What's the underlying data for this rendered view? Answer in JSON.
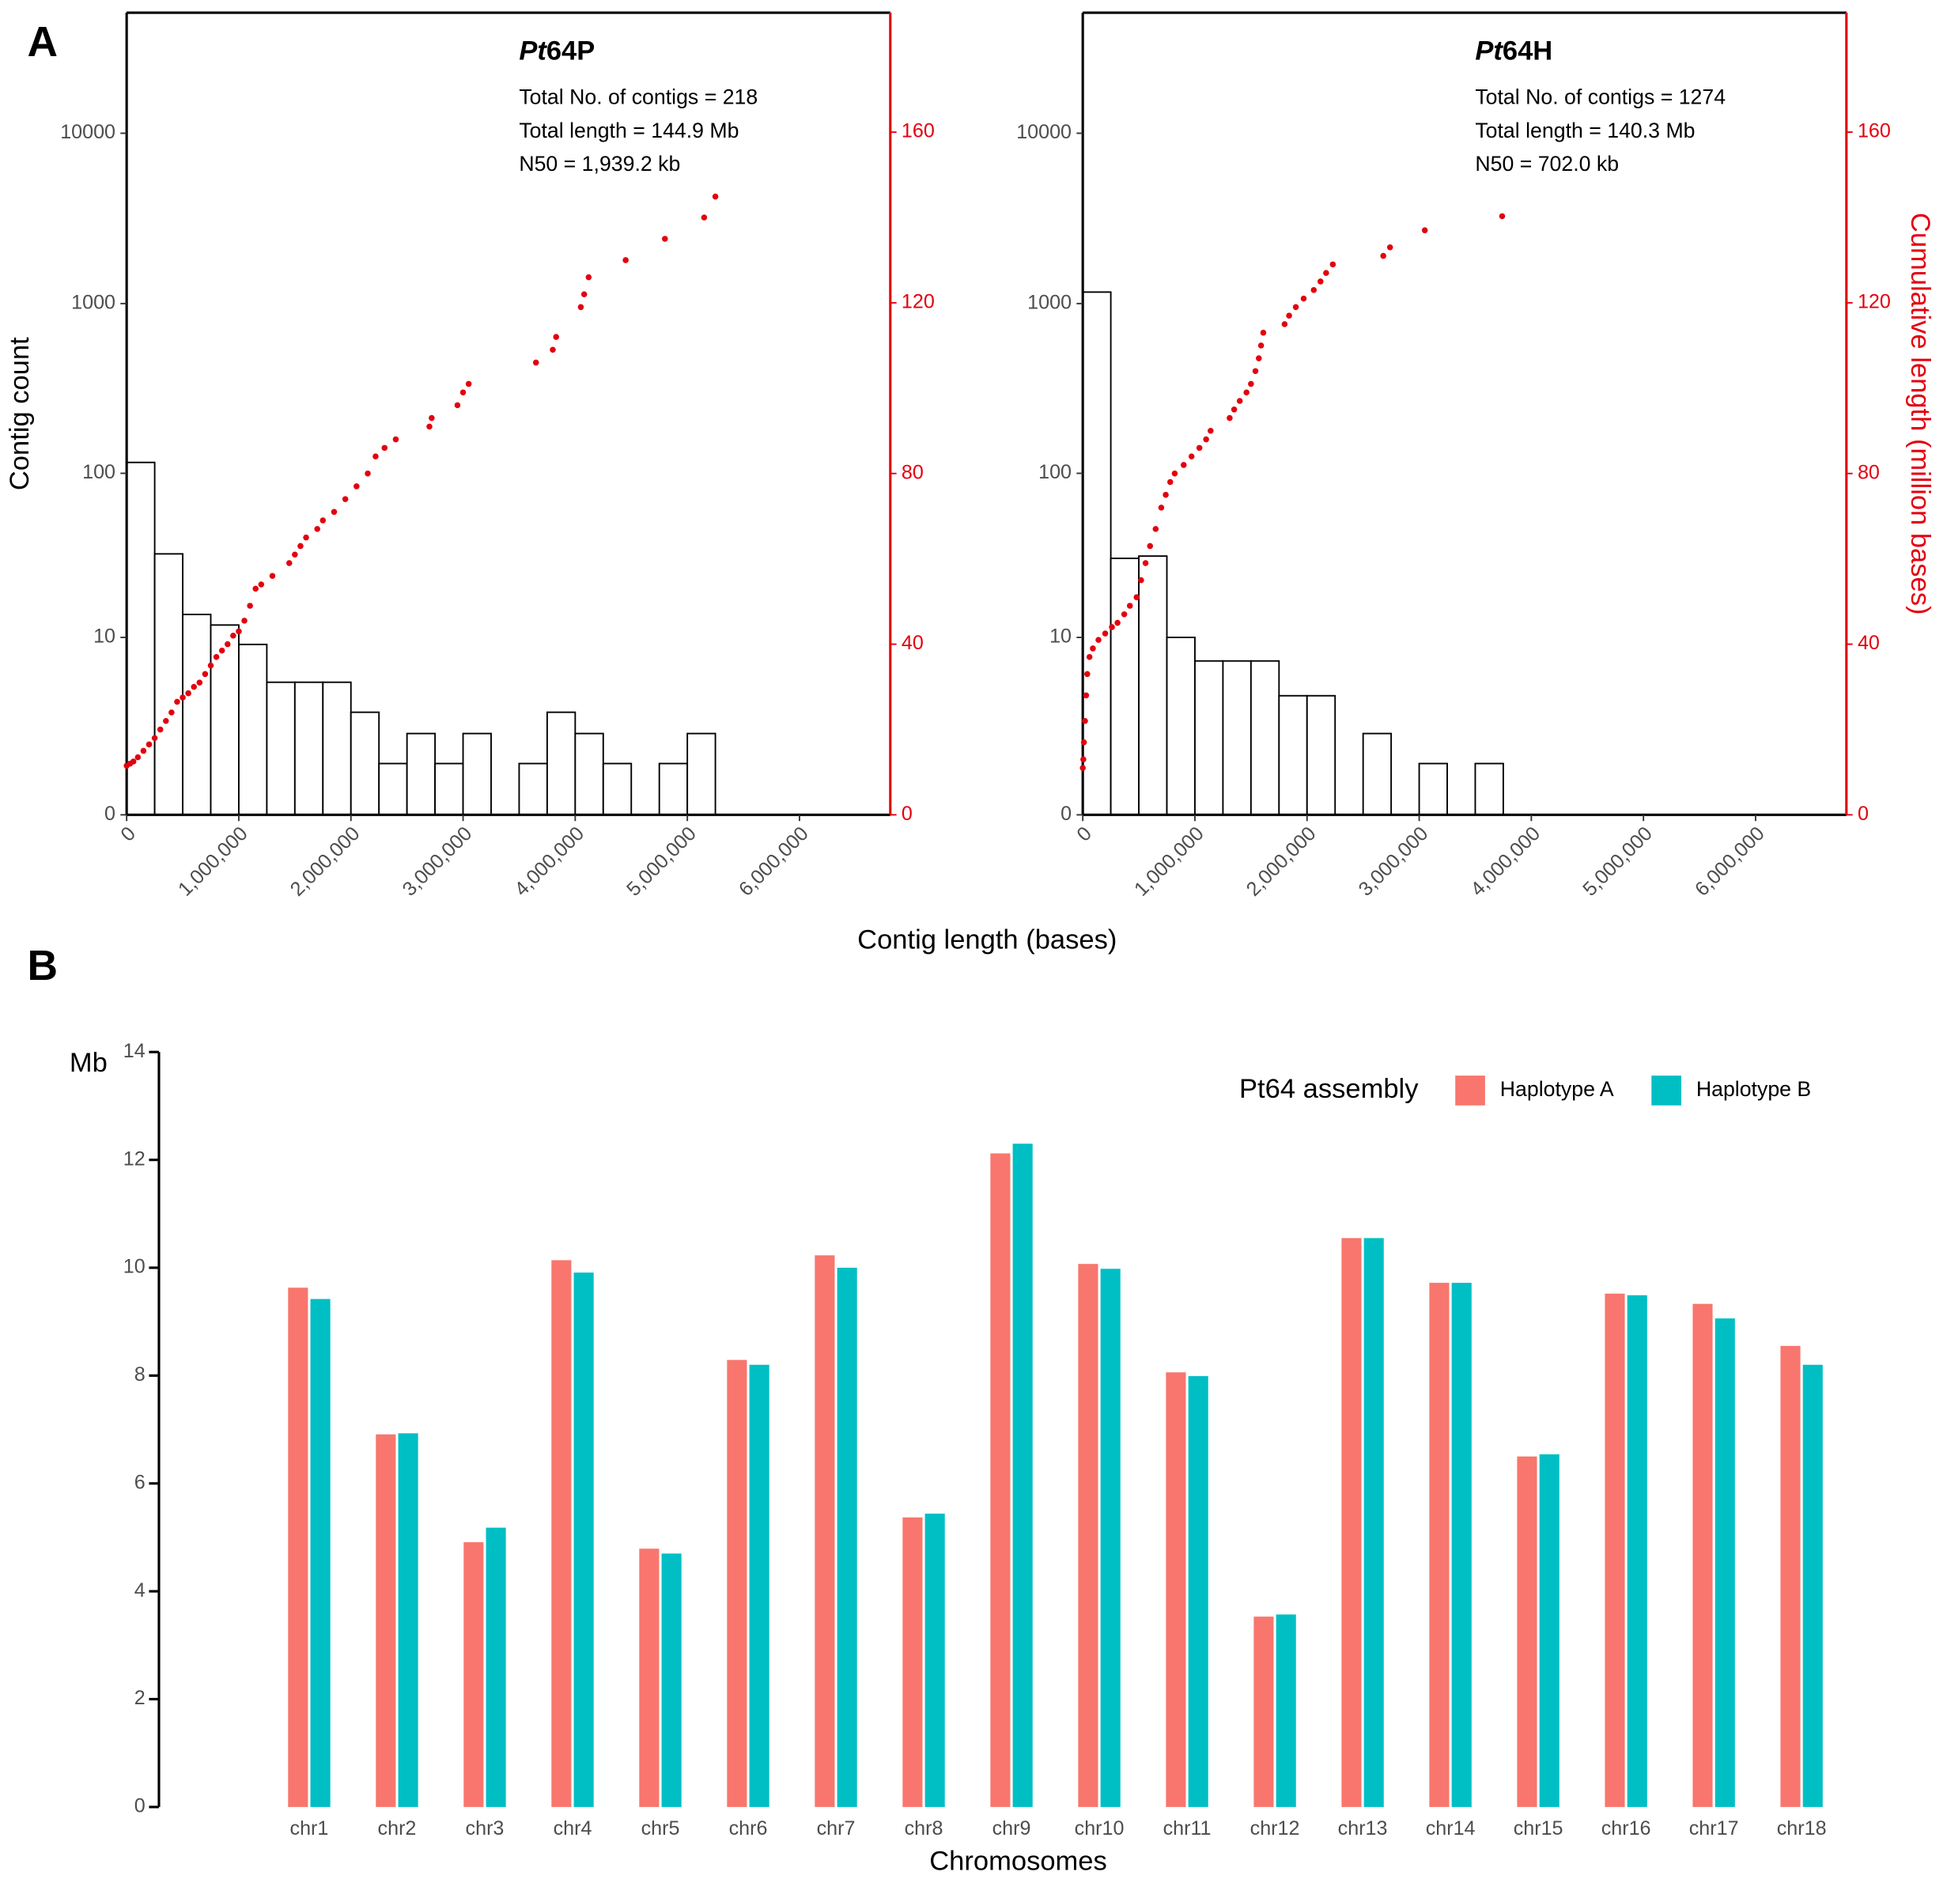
{
  "panel_a": {
    "label": "A",
    "xlabel": "Contig length (bases)"
  },
  "panel_b": {
    "label": "B"
  },
  "chart_data": [
    {
      "type": "histogram",
      "title": [
        {
          "text": "Pt",
          "italic": true
        },
        {
          "text": "64P",
          "italic": false
        }
      ],
      "annotations": [
        "Total No. of contigs = 218",
        "Total length = 144.9 Mb",
        "N50 = 1,939.2 kb"
      ],
      "ylabel": "Contig count",
      "bins": [
        0,
        250000,
        500000,
        750000,
        1000000,
        1250000,
        1500000,
        1750000,
        2000000,
        2250000,
        2500000,
        2750000,
        3000000,
        3250000,
        3500000,
        3750000,
        4000000,
        4250000,
        4500000,
        4750000,
        5000000,
        5250000
      ],
      "values": [
        116,
        33,
        14,
        12,
        9,
        5,
        5,
        5,
        3,
        1,
        2,
        1,
        2,
        0,
        1,
        3,
        2,
        1,
        0,
        1,
        2
      ],
      "color": "#ffffff",
      "edgecolor": "#000000",
      "xlim": [
        0,
        6810000
      ],
      "xticks": [
        0,
        {
          "value": 1000000,
          "label": "1,000,000"
        },
        {
          "value": 2000000,
          "label": "2,000,000"
        },
        {
          "value": 3000000,
          "label": "3,000,000"
        },
        {
          "value": 4000000,
          "label": "4,000,000"
        },
        {
          "value": 5000000,
          "label": "5,000,000"
        },
        {
          "value": 6000000,
          "label": "6,000,000"
        }
      ],
      "yscale": "log1p",
      "ylim": [
        0,
        51000
      ],
      "yticks": [
        0,
        10,
        100,
        1000,
        10000
      ],
      "y2lim": [
        0,
        188
      ],
      "y2ticks": [
        0,
        40,
        80,
        120,
        160
      ],
      "y2color": "#e3000f",
      "cumulative": {
        "axis": "y2",
        "color": "#e3000f",
        "x": [
          0,
          30000,
          60000,
          100000,
          150000,
          200000,
          250000,
          300000,
          350000,
          400000,
          450000,
          500000,
          550000,
          600000,
          650000,
          700000,
          750000,
          800000,
          850000,
          900000,
          950000,
          1000000,
          1050000,
          1100000,
          1150000,
          1200000,
          1300000,
          1450000,
          1500000,
          1550000,
          1600000,
          1700000,
          1750000,
          1850000,
          1950000,
          2050000,
          2150000,
          2220000,
          2300000,
          2400000,
          2700000,
          2720000,
          2950000,
          3000000,
          3050000,
          3650000,
          3800000,
          3830000,
          4050000,
          4080000,
          4120000,
          4450000,
          4800000,
          5150000,
          5250000
        ],
        "y": [
          11.5,
          12,
          12.5,
          13.5,
          15,
          16.5,
          18,
          20,
          22,
          24,
          26.5,
          27.5,
          28.5,
          30,
          31,
          33,
          35,
          37,
          38.5,
          40,
          42,
          43,
          45.5,
          49,
          53,
          54,
          56,
          59,
          61,
          63,
          65,
          67,
          69,
          71,
          74,
          77,
          80,
          84,
          86,
          88,
          91,
          93,
          96,
          99,
          101,
          106,
          109,
          112,
          119,
          122,
          126,
          130,
          135,
          140,
          144.9
        ]
      }
    },
    {
      "type": "histogram",
      "title": [
        {
          "text": "Pt",
          "italic": true
        },
        {
          "text": "64H",
          "italic": false
        }
      ],
      "annotations": [
        "Total No. of contigs = 1274",
        "Total length = 140.3 Mb",
        "N50 = 702.0 kb"
      ],
      "y2label": "Cumulative length (million bases)",
      "bins": [
        0,
        250000,
        500000,
        750000,
        1000000,
        1250000,
        1500000,
        1750000,
        2000000,
        2250000,
        2500000,
        2750000,
        3000000,
        3250000,
        3500000,
        3750000
      ],
      "values": [
        1168,
        31,
        32,
        10,
        7,
        7,
        7,
        4,
        4,
        0,
        2,
        0,
        1,
        0,
        1
      ],
      "color": "#ffffff",
      "edgecolor": "#000000",
      "xlim": [
        0,
        6810000
      ],
      "xticks": [
        0,
        {
          "value": 1000000,
          "label": "1,000,000"
        },
        {
          "value": 2000000,
          "label": "2,000,000"
        },
        {
          "value": 3000000,
          "label": "3,000,000"
        },
        {
          "value": 4000000,
          "label": "4,000,000"
        },
        {
          "value": 5000000,
          "label": "5,000,000"
        },
        {
          "value": 6000000,
          "label": "6,000,000"
        }
      ],
      "yscale": "log1p",
      "ylim": [
        0,
        51000
      ],
      "yticks": [
        0,
        10,
        100,
        1000,
        10000
      ],
      "y2lim": [
        0,
        188
      ],
      "y2ticks": [
        0,
        40,
        80,
        120,
        160
      ],
      "y2color": "#e3000f",
      "cumulative": {
        "axis": "y2",
        "color": "#e3000f",
        "x": [
          0,
          5000,
          10000,
          20000,
          30000,
          40000,
          60000,
          90000,
          140000,
          200000,
          260000,
          310000,
          370000,
          420000,
          480000,
          520000,
          560000,
          600000,
          650000,
          700000,
          740000,
          780000,
          820000,
          900000,
          970000,
          1040000,
          1100000,
          1140000,
          1310000,
          1350000,
          1400000,
          1460000,
          1500000,
          1540000,
          1570000,
          1590000,
          1610000,
          1800000,
          1840000,
          1900000,
          1970000,
          2060000,
          2120000,
          2170000,
          2230000,
          2680000,
          2740000,
          3050000,
          3740000
        ],
        "y": [
          11,
          13,
          17,
          22,
          28,
          33,
          37,
          39,
          41,
          42.5,
          44,
          45,
          47,
          49,
          51,
          55,
          59,
          63,
          67,
          72,
          75,
          78,
          80,
          82,
          84,
          86,
          88,
          90,
          93,
          95,
          97,
          99,
          101,
          104,
          107,
          110,
          113,
          115,
          117,
          119,
          121,
          123,
          125,
          127,
          129,
          131,
          133,
          137,
          140.3
        ]
      }
    },
    {
      "type": "bar",
      "ylabel": "Mb",
      "xlabel": "Chromosomes",
      "legend_title": "Pt64 assembly",
      "legend": "top right",
      "categories": [
        "chr1",
        "chr2",
        "chr3",
        "chr4",
        "chr5",
        "chr6",
        "chr7",
        "chr8",
        "chr9",
        "chr10",
        "chr11",
        "chr12",
        "chr13",
        "chr14",
        "chr15",
        "chr16",
        "chr17",
        "chr18"
      ],
      "series": [
        {
          "name": "Haplotype A",
          "color": "#f8766d",
          "values": [
            9.63,
            6.91,
            4.91,
            10.14,
            4.79,
            8.29,
            10.23,
            5.37,
            12.12,
            10.07,
            8.06,
            3.53,
            10.55,
            9.72,
            6.5,
            9.52,
            9.33,
            8.55
          ]
        },
        {
          "name": "Haplotype B",
          "color": "#00bfc4",
          "values": [
            9.42,
            6.93,
            5.18,
            9.91,
            4.7,
            8.2,
            10.0,
            5.44,
            12.3,
            9.98,
            7.99,
            3.57,
            10.55,
            9.72,
            6.54,
            9.49,
            9.06,
            8.2
          ]
        }
      ],
      "ylim": [
        0,
        14
      ],
      "yticks": [
        0,
        2,
        4,
        6,
        8,
        10,
        12,
        14
      ]
    }
  ]
}
